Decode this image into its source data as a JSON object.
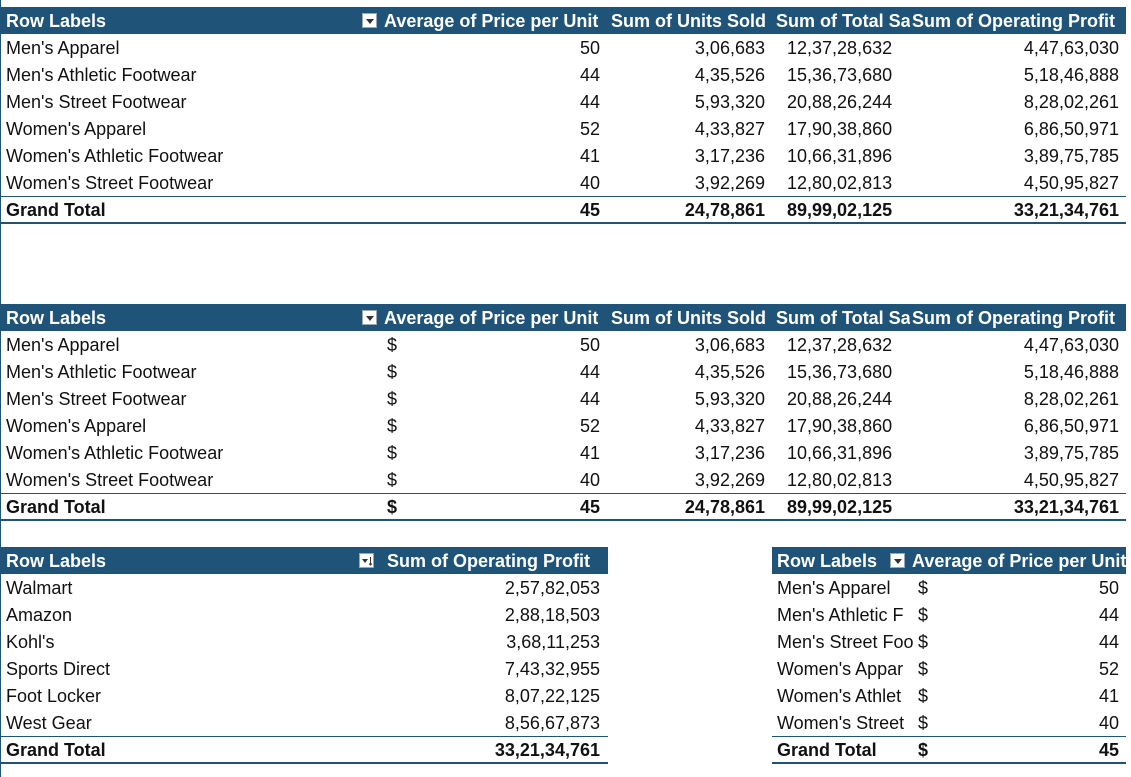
{
  "pivot1": {
    "headers": {
      "row_labels": "Row Labels",
      "avg_price": "Average of Price per Unit",
      "units": "Sum of Units Sold",
      "sales": "Sum of Total Sa",
      "profit": "Sum of Operating Profit"
    },
    "rows": [
      {
        "label": "Men's Apparel",
        "avg": "50",
        "units": "3,06,683",
        "sales": "12,37,28,632",
        "profit": "4,47,63,030"
      },
      {
        "label": "Men's Athletic Footwear",
        "avg": "44",
        "units": "4,35,526",
        "sales": "15,36,73,680",
        "profit": "5,18,46,888"
      },
      {
        "label": "Men's Street Footwear",
        "avg": "44",
        "units": "5,93,320",
        "sales": "20,88,26,244",
        "profit": "8,28,02,261"
      },
      {
        "label": "Women's Apparel",
        "avg": "52",
        "units": "4,33,827",
        "sales": "17,90,38,860",
        "profit": "6,86,50,971"
      },
      {
        "label": "Women's Athletic Footwear",
        "avg": "41",
        "units": "3,17,236",
        "sales": "10,66,31,896",
        "profit": "3,89,75,785"
      },
      {
        "label": "Women's Street Footwear",
        "avg": "40",
        "units": "3,92,269",
        "sales": "12,80,02,813",
        "profit": "4,50,95,827"
      }
    ],
    "total": {
      "label": "Grand Total",
      "avg": "45",
      "units": "24,78,861",
      "sales": "89,99,02,125",
      "profit": "33,21,34,761"
    }
  },
  "pivot2": {
    "headers": {
      "row_labels": "Row Labels",
      "avg_price": "Average of Price per Unit",
      "units": "Sum of Units Sold",
      "sales": "Sum of Total Sa",
      "profit": "Sum of Operating Profit"
    },
    "currency": "$",
    "rows": [
      {
        "label": "Men's Apparel",
        "avg": "50",
        "units": "3,06,683",
        "sales": "12,37,28,632",
        "profit": "4,47,63,030"
      },
      {
        "label": "Men's Athletic Footwear",
        "avg": "44",
        "units": "4,35,526",
        "sales": "15,36,73,680",
        "profit": "5,18,46,888"
      },
      {
        "label": "Men's Street Footwear",
        "avg": "44",
        "units": "5,93,320",
        "sales": "20,88,26,244",
        "profit": "8,28,02,261"
      },
      {
        "label": "Women's Apparel",
        "avg": "52",
        "units": "4,33,827",
        "sales": "17,90,38,860",
        "profit": "6,86,50,971"
      },
      {
        "label": "Women's Athletic Footwear",
        "avg": "41",
        "units": "3,17,236",
        "sales": "10,66,31,896",
        "profit": "3,89,75,785"
      },
      {
        "label": "Women's Street Footwear",
        "avg": "40",
        "units": "3,92,269",
        "sales": "12,80,02,813",
        "profit": "4,50,95,827"
      }
    ],
    "total": {
      "label": "Grand Total",
      "avg": "45",
      "units": "24,78,861",
      "sales": "89,99,02,125",
      "profit": "33,21,34,761"
    }
  },
  "pivot3": {
    "headers": {
      "row_labels": "Row Labels",
      "profit": "Sum of Operating Profit"
    },
    "rows": [
      {
        "label": "Walmart",
        "profit": "2,57,82,053"
      },
      {
        "label": "Amazon",
        "profit": "2,88,18,503"
      },
      {
        "label": "Kohl's",
        "profit": "3,68,11,253"
      },
      {
        "label": "Sports Direct",
        "profit": "7,43,32,955"
      },
      {
        "label": "Foot Locker",
        "profit": "8,07,22,125"
      },
      {
        "label": "West Gear",
        "profit": "8,56,67,873"
      }
    ],
    "total": {
      "label": "Grand Total",
      "profit": "33,21,34,761"
    }
  },
  "pivot4": {
    "headers": {
      "row_labels": "Row Labels",
      "avg_price": "Average of Price per Unit"
    },
    "currency": "$",
    "rows": [
      {
        "label": "Men's Apparel",
        "avg": "50"
      },
      {
        "label": "Men's Athletic F",
        "avg": "44"
      },
      {
        "label": "Men's Street Foo",
        "avg": "44"
      },
      {
        "label": "Women's Appar",
        "avg": "52"
      },
      {
        "label": "Women's Athlet",
        "avg": "41"
      },
      {
        "label": "Women's Street",
        "avg": "40"
      }
    ],
    "total": {
      "label": "Grand Total",
      "avg": "45"
    }
  },
  "icons": {
    "filter": "filter-dropdown-icon",
    "sort_filter": "sort-filter-dropdown-icon"
  },
  "colors": {
    "header_bg": "#1f5478",
    "header_text": "#ffffff"
  }
}
